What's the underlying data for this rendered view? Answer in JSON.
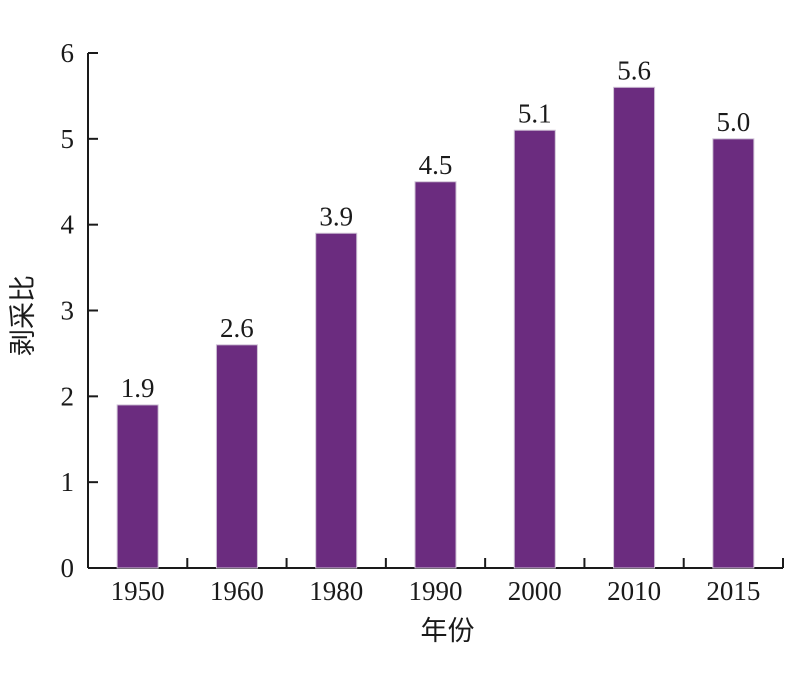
{
  "chart_data": {
    "type": "bar",
    "categories": [
      "1950",
      "1960",
      "1980",
      "1990",
      "2000",
      "2010",
      "2015"
    ],
    "values": [
      1.9,
      2.6,
      3.9,
      4.5,
      5.1,
      5.6,
      5.0
    ],
    "value_labels": [
      "1.9",
      "2.6",
      "3.9",
      "4.5",
      "5.1",
      "5.6",
      "5.0"
    ],
    "title": "",
    "xlabel": "年份",
    "ylabel": "剥采比",
    "ylim": [
      0,
      6
    ],
    "yticks": [
      "0",
      "1",
      "2",
      "3",
      "4",
      "5",
      "6"
    ],
    "grid": false,
    "bar_color": "#6b2c7f",
    "axis_color": "#1a1a1a"
  }
}
